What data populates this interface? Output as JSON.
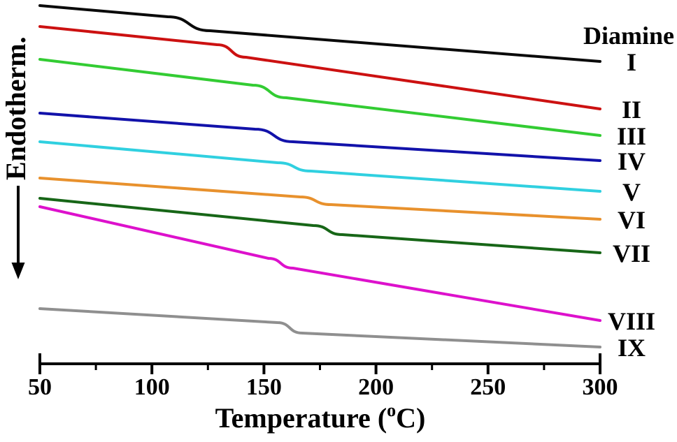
{
  "figure": {
    "ylabel": "Endotherm.",
    "ylabel_direction_note": "arrow points downward (endothermic down)",
    "xlabel_prefix": "Temperature (",
    "xlabel_sup": "o",
    "xlabel_suffix": "C)",
    "legend_title": "Diamine"
  },
  "axis": {
    "xlim": [
      50,
      300
    ],
    "major_ticks": [
      50,
      100,
      150,
      200,
      250,
      300
    ],
    "minor_ticks": [
      75,
      125,
      175,
      225,
      275
    ],
    "tick_labels": [
      "50",
      "100",
      "150",
      "200",
      "250",
      "300"
    ]
  },
  "chart_data": {
    "type": "line",
    "title": "",
    "xlabel": "Temperature (°C)",
    "ylabel": "Endotherm. (arbitrary units, unlabeled axis; arrow indicates endothermic direction downward)",
    "xlim": [
      50,
      300
    ],
    "grid": false,
    "legend_position": "right",
    "legend_title": "Diamine",
    "y_units": "arbitrary vertical offsets (curves stacked for clarity; values are canvas offsets, larger = lower)",
    "series": [
      {
        "label": "I",
        "color": "#0a0a0a",
        "tg_c": 116,
        "points": [
          [
            50,
            8
          ],
          [
            107,
            24
          ],
          [
            126,
            44
          ],
          [
            300,
            88
          ]
        ]
      },
      {
        "label": "II",
        "color": "#cc1111",
        "tg_c": 136,
        "points": [
          [
            50,
            38
          ],
          [
            129,
            64
          ],
          [
            142,
            82
          ],
          [
            300,
            156
          ]
        ]
      },
      {
        "label": "III",
        "color": "#33cc33",
        "tg_c": 152,
        "points": [
          [
            50,
            85
          ],
          [
            145,
            122
          ],
          [
            160,
            140
          ],
          [
            300,
            194
          ]
        ]
      },
      {
        "label": "IV",
        "color": "#1212aa",
        "tg_c": 154,
        "points": [
          [
            50,
            162
          ],
          [
            146,
            185
          ],
          [
            163,
            203
          ],
          [
            300,
            230
          ]
        ]
      },
      {
        "label": "V",
        "color": "#30d0e0",
        "tg_c": 163,
        "points": [
          [
            50,
            203
          ],
          [
            156,
            233
          ],
          [
            171,
            245
          ],
          [
            300,
            274
          ]
        ]
      },
      {
        "label": "VI",
        "color": "#e8912d",
        "tg_c": 173,
        "points": [
          [
            50,
            255
          ],
          [
            166,
            282
          ],
          [
            180,
            293
          ],
          [
            300,
            314
          ]
        ]
      },
      {
        "label": "VII",
        "color": "#176617",
        "tg_c": 178,
        "points": [
          [
            50,
            284
          ],
          [
            172,
            323
          ],
          [
            185,
            336
          ],
          [
            300,
            362
          ]
        ]
      },
      {
        "label": "VIII",
        "color": "#dd11cc",
        "tg_c": 158,
        "points": [
          [
            50,
            296
          ],
          [
            152,
            370
          ],
          [
            163,
            384
          ],
          [
            300,
            459
          ]
        ]
      },
      {
        "label": "IX",
        "color": "#8f8f8f",
        "tg_c": 161,
        "points": [
          [
            50,
            442
          ],
          [
            156,
            462
          ],
          [
            167,
            477
          ],
          [
            300,
            497
          ]
        ]
      }
    ]
  }
}
